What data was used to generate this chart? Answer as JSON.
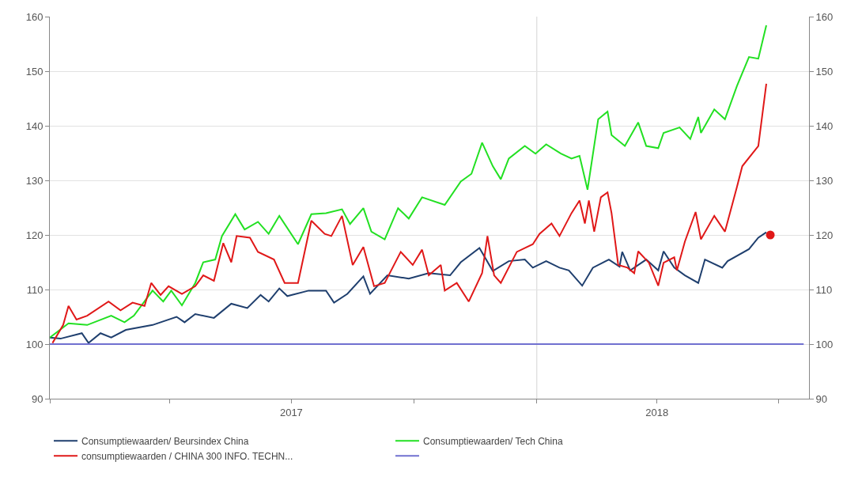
{
  "chart_data": {
    "type": "line",
    "xlim": [
      "2017-01-01",
      "2018-07-24"
    ],
    "xticks": [
      {
        "value": "2017-01-01",
        "label": null
      },
      {
        "value": "2017-04-01",
        "label": null
      },
      {
        "value": "2017-07-01",
        "label": "2017"
      },
      {
        "value": "2017-10-01",
        "label": null
      },
      {
        "value": "2018-01-01",
        "label": null
      },
      {
        "value": "2018-04-01",
        "label": "2018"
      },
      {
        "value": "2018-07-01",
        "label": null
      }
    ],
    "ylim": [
      90,
      160
    ],
    "yticks": [
      90,
      100,
      110,
      120,
      130,
      140,
      150,
      160
    ],
    "y2lim": [
      90,
      160
    ],
    "y2ticks": [
      90,
      100,
      110,
      120,
      130,
      140,
      150,
      160
    ],
    "grid": "y",
    "legend": "bottom",
    "marker": "none",
    "line_style": "solid",
    "ref_lines": [
      {
        "axis": "x",
        "value": "2018-01-01",
        "label": null,
        "color": "#d4d4d4"
      }
    ],
    "series": [
      {
        "name": "Consumptiewaarden/ Beursindex China",
        "color": "#1f3f6e",
        "x": [
          "2017-01-01",
          "2017-01-09",
          "2017-01-25",
          "2017-01-30",
          "2017-02-08",
          "2017-02-16",
          "2017-02-27",
          "2017-03-19",
          "2017-04-06",
          "2017-04-12",
          "2017-04-20",
          "2017-05-04",
          "2017-05-17",
          "2017-05-29",
          "2017-06-08",
          "2017-06-14",
          "2017-06-22",
          "2017-06-28",
          "2017-07-14",
          "2017-07-27",
          "2017-08-02",
          "2017-08-12",
          "2017-08-24",
          "2017-08-29",
          "2017-09-11",
          "2017-09-27",
          "2017-10-12",
          "2017-10-28",
          "2017-11-05",
          "2017-11-19",
          "2017-11-29",
          "2017-12-11",
          "2017-12-23",
          "2017-12-29",
          "2018-01-08",
          "2018-01-18",
          "2018-01-25",
          "2018-02-04",
          "2018-02-12",
          "2018-02-24",
          "2018-03-04",
          "2018-03-06",
          "2018-03-12",
          "2018-03-24",
          "2018-04-02",
          "2018-04-06",
          "2018-04-14",
          "2018-04-22",
          "2018-05-02",
          "2018-05-07",
          "2018-05-20",
          "2018-05-24",
          "2018-06-09",
          "2018-06-16",
          "2018-06-22"
        ],
        "values": [
          101.2,
          101,
          102,
          100.2,
          102,
          101.2,
          102.6,
          103.5,
          105,
          104,
          105.5,
          104.8,
          107.4,
          106.6,
          109,
          107.8,
          110.2,
          108.8,
          109.8,
          109.8,
          107.6,
          109.2,
          112.4,
          109.2,
          112.6,
          112,
          113,
          112.6,
          115,
          117.6,
          113.4,
          115.2,
          115.5,
          114,
          115.2,
          114,
          113.5,
          110.7,
          114,
          115.5,
          114.2,
          116.9,
          113.5,
          115.5,
          113.5,
          117,
          114,
          112.6,
          111.2,
          115.5,
          114,
          115.2,
          117.4,
          119.5,
          120.5
        ]
      },
      {
        "name": "Consumptiewaarden/ Tech China",
        "color": "#22e022",
        "x": [
          "2017-01-01",
          "2017-01-15",
          "2017-01-29",
          "2017-02-16",
          "2017-02-26",
          "2017-03-05",
          "2017-03-19",
          "2017-03-27",
          "2017-04-02",
          "2017-04-10",
          "2017-04-20",
          "2017-04-26",
          "2017-05-05",
          "2017-05-10",
          "2017-05-20",
          "2017-05-27",
          "2017-06-06",
          "2017-06-14",
          "2017-06-22",
          "2017-07-06",
          "2017-07-16",
          "2017-07-27",
          "2017-08-08",
          "2017-08-14",
          "2017-08-24",
          "2017-08-30",
          "2017-09-09",
          "2017-09-19",
          "2017-09-27",
          "2017-10-07",
          "2017-10-24",
          "2017-11-05",
          "2017-11-13",
          "2017-11-21",
          "2017-11-29",
          "2017-12-05",
          "2017-12-11",
          "2017-12-23",
          "2017-12-31",
          "2018-01-08",
          "2018-01-19",
          "2018-01-27",
          "2018-02-02",
          "2018-02-08",
          "2018-02-16",
          "2018-02-23",
          "2018-02-26",
          "2018-03-08",
          "2018-03-18",
          "2018-03-24",
          "2018-04-02",
          "2018-04-06",
          "2018-04-18",
          "2018-04-26",
          "2018-05-02",
          "2018-05-04",
          "2018-05-14",
          "2018-05-22",
          "2018-05-31",
          "2018-06-09",
          "2018-06-16",
          "2018-06-22"
        ],
        "values": [
          101.2,
          103.8,
          103.5,
          105.2,
          104,
          105.2,
          109.8,
          107.8,
          109.8,
          107.1,
          111.2,
          115,
          115.5,
          119.8,
          123.8,
          121,
          122.4,
          120.2,
          123.5,
          118.3,
          123.8,
          124,
          124.7,
          122,
          124.9,
          120.6,
          119.2,
          124.9,
          123,
          126.9,
          125.5,
          129.8,
          131.2,
          136.9,
          132.6,
          130.2,
          134,
          136.3,
          134.9,
          136.6,
          134.9,
          134,
          134.5,
          128.3,
          141.2,
          142.6,
          138.3,
          136.3,
          140.6,
          136.3,
          135.9,
          138.7,
          139.7,
          137.6,
          141.6,
          138.7,
          143,
          141.2,
          147.3,
          152.6,
          152.3,
          158.4
        ]
      },
      {
        "name": "consumptiewaarden / CHINA 300 INFO. TECHN...",
        "color": "#e01818",
        "x": [
          "2017-01-03",
          "2017-01-11",
          "2017-01-15",
          "2017-01-21",
          "2017-01-29",
          "2017-02-14",
          "2017-02-23",
          "2017-03-04",
          "2017-03-13",
          "2017-03-18",
          "2017-03-25",
          "2017-03-31",
          "2017-04-10",
          "2017-04-20",
          "2017-04-26",
          "2017-05-04",
          "2017-05-11",
          "2017-05-17",
          "2017-05-21",
          "2017-05-31",
          "2017-06-06",
          "2017-06-18",
          "2017-06-26",
          "2017-07-06",
          "2017-07-16",
          "2017-07-26",
          "2017-07-31",
          "2017-08-08",
          "2017-08-16",
          "2017-08-24",
          "2017-09-01",
          "2017-09-09",
          "2017-09-21",
          "2017-09-30",
          "2017-10-07",
          "2017-10-12",
          "2017-10-21",
          "2017-10-24",
          "2017-11-02",
          "2017-11-11",
          "2017-11-21",
          "2017-11-25",
          "2017-11-30",
          "2017-12-05",
          "2017-12-17",
          "2017-12-29",
          "2018-01-03",
          "2018-01-12",
          "2018-01-18",
          "2018-01-27",
          "2018-02-02",
          "2018-02-06",
          "2018-02-09",
          "2018-02-13",
          "2018-02-18",
          "2018-02-23",
          "2018-02-26",
          "2018-03-03",
          "2018-03-10",
          "2018-03-15",
          "2018-03-18",
          "2018-03-26",
          "2018-04-02",
          "2018-04-06",
          "2018-04-14",
          "2018-04-16",
          "2018-04-22",
          "2018-04-30",
          "2018-05-04",
          "2018-05-14",
          "2018-05-22",
          "2018-05-31",
          "2018-06-04",
          "2018-06-16",
          "2018-06-22"
        ],
        "values": [
          100.2,
          103.5,
          107,
          104.5,
          105.2,
          107.8,
          106.2,
          107.6,
          107,
          111.2,
          109,
          110.6,
          109.2,
          110.6,
          112.6,
          111.6,
          118.5,
          115,
          119.8,
          119.5,
          116.9,
          115.5,
          111.2,
          111.2,
          122.6,
          120.2,
          119.8,
          123.5,
          114.5,
          117.8,
          110.6,
          111.2,
          116.9,
          114.5,
          117.3,
          112.6,
          114.5,
          109.8,
          111.2,
          107.8,
          113,
          119.8,
          112.6,
          111.2,
          116.9,
          118.3,
          120.2,
          122.1,
          119.8,
          124,
          126.3,
          122.1,
          126.3,
          120.6,
          126.9,
          127.8,
          124,
          114.5,
          114,
          113,
          117,
          114.9,
          110.7,
          114.9,
          115.9,
          113.5,
          118.8,
          124.2,
          119.2,
          123.5,
          120.6,
          128.8,
          132.6,
          136.3,
          147.7
        ]
      },
      {
        "color": "#7070d0",
        "x": [
          "2017-01-01",
          "2018-07-20"
        ],
        "values": [
          100,
          100
        ]
      },
      {
        "type": "scatter",
        "marker": "circle",
        "color": "#e01818",
        "x": [
          "2018-06-25"
        ],
        "values": [
          120
        ]
      }
    ]
  }
}
